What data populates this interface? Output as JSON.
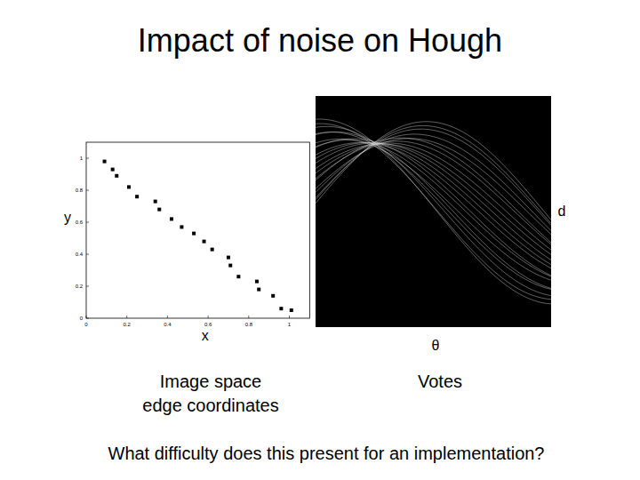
{
  "title": "Impact of noise on Hough",
  "question": "What difficulty does this present for an implementation?",
  "chart_data": [
    {
      "type": "scatter",
      "x": [
        0.09,
        0.13,
        0.15,
        0.21,
        0.25,
        0.34,
        0.36,
        0.42,
        0.47,
        0.53,
        0.58,
        0.62,
        0.7,
        0.71,
        0.75,
        0.84,
        0.85,
        0.92,
        0.96,
        1.01
      ],
      "values": [
        0.98,
        0.93,
        0.89,
        0.82,
        0.76,
        0.73,
        0.68,
        0.62,
        0.57,
        0.53,
        0.48,
        0.43,
        0.38,
        0.33,
        0.26,
        0.23,
        0.18,
        0.14,
        0.06,
        0.05
      ],
      "color": "#000000",
      "marker": "square",
      "xlim": [
        0,
        1.1
      ],
      "ylim": [
        0,
        1.1
      ],
      "xticks": [
        0,
        0.2,
        0.4,
        0.6,
        0.8,
        1
      ],
      "yticks": [
        0,
        0.2,
        0.4,
        0.6,
        0.8,
        1
      ],
      "xlabel": "x",
      "ylabel": "y",
      "caption": [
        "Image space",
        "edge coordinates"
      ]
    },
    {
      "type": "hough",
      "xlabel": "θ",
      "ylabel": "d",
      "color": "#dddddd",
      "caption": [
        "Votes"
      ]
    }
  ]
}
